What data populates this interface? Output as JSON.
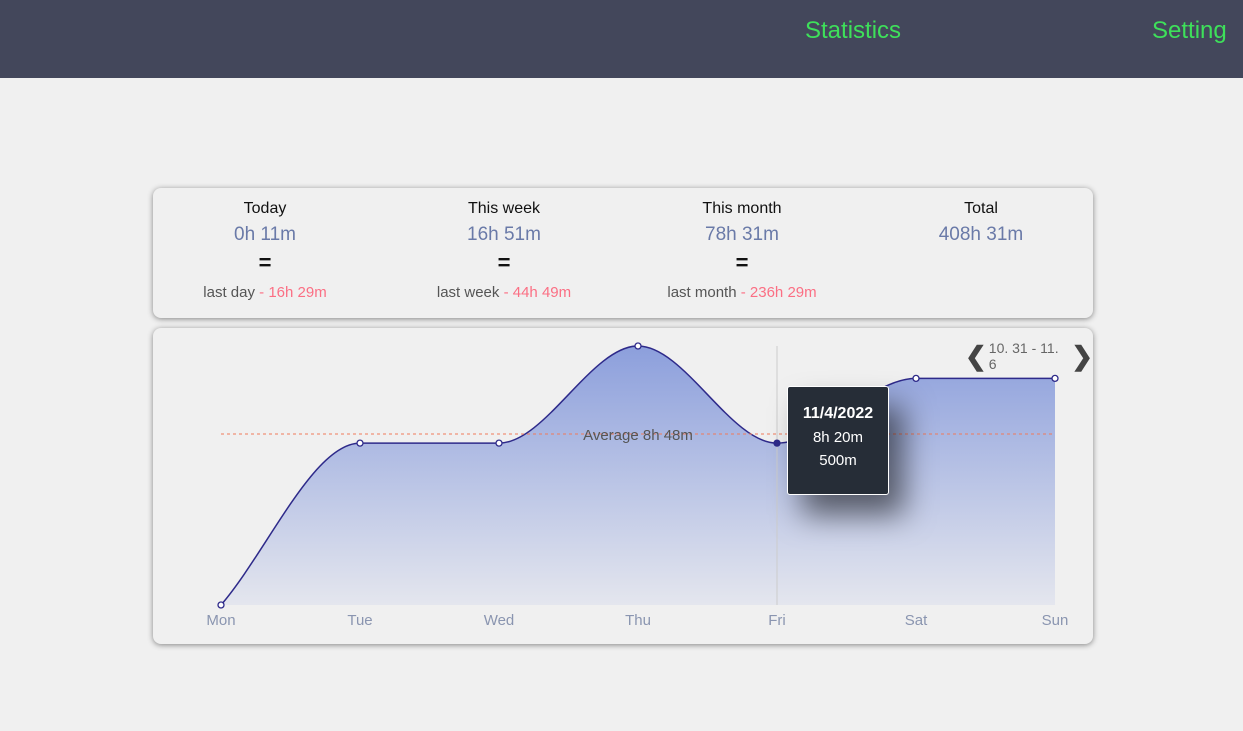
{
  "nav": {
    "statistics": "Statistics",
    "setting": "Setting"
  },
  "stats": [
    {
      "label": "Today",
      "value": "0h 11m",
      "eq": "=",
      "cmp_label": "last day",
      "dash": "-",
      "cmp_value": "16h 29m"
    },
    {
      "label": "This week",
      "value": "16h 51m",
      "eq": "=",
      "cmp_label": "last week",
      "dash": "-",
      "cmp_value": "44h 49m"
    },
    {
      "label": "This month",
      "value": "78h 31m",
      "eq": "=",
      "cmp_label": "last month",
      "dash": "-",
      "cmp_value": "236h 29m"
    },
    {
      "label": "Total",
      "value": "408h 31m"
    }
  ],
  "range": {
    "label": "10. 31 - 11. 6",
    "prev": "❮",
    "next": "❯"
  },
  "tooltip": {
    "date": "11/4/2022",
    "duration": "8h 20m",
    "minutes": "500m"
  },
  "chart_data": {
    "type": "area",
    "categories": [
      "Mon",
      "Tue",
      "Wed",
      "Thu",
      "Fri",
      "Sat",
      "Sun"
    ],
    "values": [
      0,
      500,
      500,
      800,
      500,
      700,
      700
    ],
    "unit": "minutes",
    "average": {
      "value": 528,
      "label": "Average 8h 48m"
    },
    "ylim": [
      0,
      800
    ],
    "hovered": "Fri",
    "colors": {
      "line": "#2e2a8a",
      "fill_top": "#8c9fdc",
      "fill_bottom": "#e4e6ee",
      "avg": "#f07a5a"
    }
  }
}
